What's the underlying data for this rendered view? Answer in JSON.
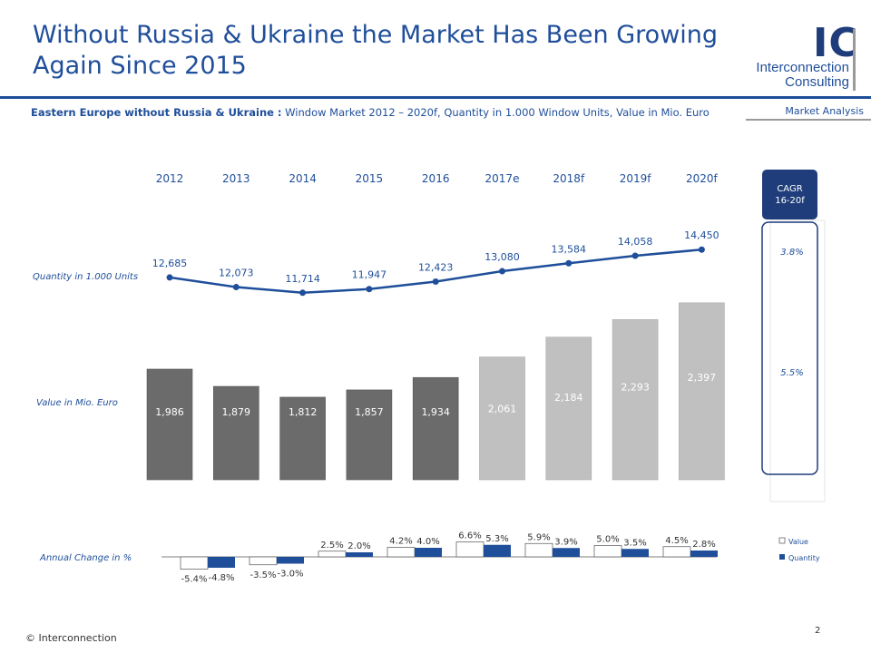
{
  "title_line1": "Without Russia & Ukraine the Market Has Been Growing",
  "title_line2": "Again Since 2015",
  "logo": {
    "mark": "IC",
    "line1": "Interconnection",
    "line2": "Consulting"
  },
  "section_label": "Market Analysis",
  "subtitle_bold": "Eastern Europe without  Russia & Ukraine :",
  "subtitle_rest": " Window Market 2012 – 2020f, Quantity in 1.000 Window Units, Value in Mio. Euro",
  "row_labels": {
    "quantity": "Quantity in 1.000  Units",
    "value": "Value in Mio. Euro",
    "change": "Annual Change in %"
  },
  "cagr": {
    "header_line1": "CAGR",
    "header_line2": "16-20f",
    "quantity": "3.8%",
    "value": "5.5%"
  },
  "footer": "© Interconnection",
  "page_number": "2",
  "colors": {
    "brand_blue": "#1f4e9a",
    "dark_blue": "#1f3d7a",
    "bar_actual": "#6b6b6b",
    "bar_forecast": "#c0c0c0",
    "change_quantity": "#1f4e9a",
    "change_value": "#ffffff"
  },
  "chart_data": {
    "type": "bar",
    "categories": [
      "2012",
      "2013",
      "2014",
      "2015",
      "2016",
      "2017e",
      "2018f",
      "2019f",
      "2020f"
    ],
    "forecast_from_index": 5,
    "series": [
      {
        "name": "Value",
        "kind": "bar",
        "values": [
          1986,
          1879,
          1812,
          1857,
          1934,
          2061,
          2184,
          2293,
          2397
        ],
        "labels": [
          "1,986",
          "1,879",
          "1,812",
          "1,857",
          "1,934",
          "2,061",
          "2,184",
          "2,293",
          "2,397"
        ]
      },
      {
        "name": "Quantity",
        "kind": "line",
        "values": [
          12685,
          12073,
          11714,
          11947,
          12423,
          13080,
          13584,
          14058,
          14450
        ],
        "labels": [
          "12,685",
          "12,073",
          "11,714",
          "11,947",
          "12,423",
          "13,080",
          "13,584",
          "14,058",
          "14,450"
        ]
      }
    ],
    "annual_change": {
      "categories": [
        "2013",
        "2014",
        "2015",
        "2016",
        "2017e",
        "2018f",
        "2019f",
        "2020f"
      ],
      "legend": [
        "Value",
        "Quantity"
      ],
      "series": [
        {
          "name": "Value",
          "values": [
            -5.4,
            -3.5,
            2.5,
            4.2,
            6.6,
            5.9,
            5.0,
            4.5
          ],
          "labels": [
            "-5.4%",
            "-3.5%",
            "2.5%",
            "4.2%",
            "6.6%",
            "5.9%",
            "5.0%",
            "4.5%"
          ]
        },
        {
          "name": "Quantity",
          "values": [
            -4.8,
            -3.0,
            2.0,
            4.0,
            5.3,
            3.9,
            3.5,
            2.8
          ],
          "labels": [
            "-4.8%",
            "-3.0%",
            "2.0%",
            "4.0%",
            "5.3%",
            "3.9%",
            "3.5%",
            "2.8%"
          ]
        }
      ]
    }
  }
}
